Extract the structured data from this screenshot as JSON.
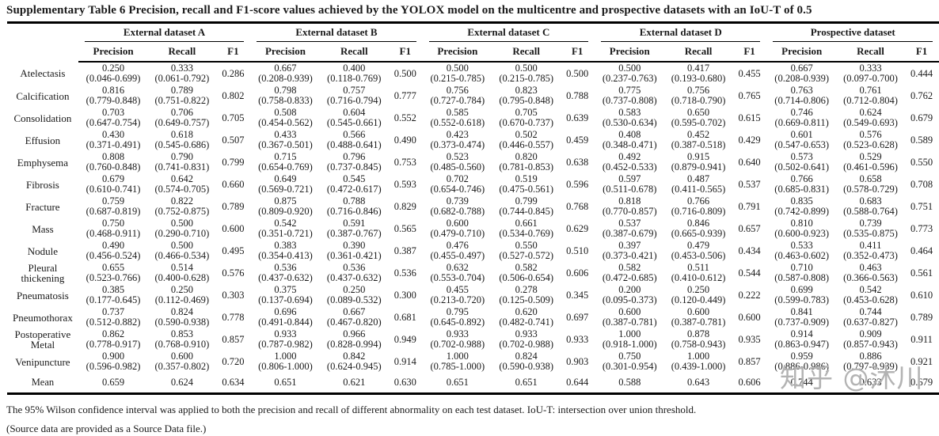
{
  "title": "Supplementary Table 6 Precision, recall and F1-score values achieved by the YOLOX model on the multicentre and prospective datasets with an IoU-T of 0.5",
  "header": {
    "groups": [
      "External dataset A",
      "External dataset B",
      "External dataset C",
      "External dataset D",
      "Prospective dataset"
    ],
    "metrics": [
      "Precision",
      "Recall",
      "F1"
    ]
  },
  "rows": [
    {
      "label": "Atelectasis",
      "cells": [
        [
          "0.250",
          "(0.046-0.699)"
        ],
        [
          "0.333",
          "(0.061-0.792)"
        ],
        [
          "0.286"
        ],
        [
          "0.667",
          "(0.208-0.939)"
        ],
        [
          "0.400",
          "(0.118-0.769)"
        ],
        [
          "0.500"
        ],
        [
          "0.500",
          "(0.215-0.785)"
        ],
        [
          "0.500",
          "(0.215-0.785)"
        ],
        [
          "0.500"
        ],
        [
          "0.500",
          "(0.237-0.763)"
        ],
        [
          "0.417",
          "(0.193-0.680)"
        ],
        [
          "0.455"
        ],
        [
          "0.667",
          "(0.208-0.939)"
        ],
        [
          "0.333",
          "(0.097-0.700)"
        ],
        [
          "0.444"
        ]
      ]
    },
    {
      "label": "Calcification",
      "cells": [
        [
          "0.816",
          "(0.779-0.848)"
        ],
        [
          "0.789",
          "(0.751-0.822)"
        ],
        [
          "0.802"
        ],
        [
          "0.798",
          "(0.758-0.833)"
        ],
        [
          "0.757",
          "(0.716-0.794)"
        ],
        [
          "0.777"
        ],
        [
          "0.756",
          "(0.727-0.784)"
        ],
        [
          "0.823",
          "(0.795-0.848)"
        ],
        [
          "0.788"
        ],
        [
          "0.775",
          "(0.737-0.808)"
        ],
        [
          "0.756",
          "(0.718-0.790)"
        ],
        [
          "0.765"
        ],
        [
          "0.763",
          "(0.714-0.806)"
        ],
        [
          "0.761",
          "(0.712-0.804)"
        ],
        [
          "0.762"
        ]
      ]
    },
    {
      "label": "Consolidation",
      "cells": [
        [
          "0.703",
          "(0.647-0.754)"
        ],
        [
          "0.706",
          "(0.649-0.757)"
        ],
        [
          "0.705"
        ],
        [
          "0.508",
          "(0.454-0.562)"
        ],
        [
          "0.604",
          "(0.545-0.661)"
        ],
        [
          "0.552"
        ],
        [
          "0.585",
          "(0.552-0.618)"
        ],
        [
          "0.705",
          "(0.670-0.737)"
        ],
        [
          "0.639"
        ],
        [
          "0.583",
          "(0.530-0.634)"
        ],
        [
          "0.650",
          "(0.595-0.702)"
        ],
        [
          "0.615"
        ],
        [
          "0.746",
          "(0.669-0.811)"
        ],
        [
          "0.624",
          "(0.549-0.693)"
        ],
        [
          "0.679"
        ]
      ]
    },
    {
      "label": "Effusion",
      "cells": [
        [
          "0.430",
          "(0.371-0.491)"
        ],
        [
          "0.618",
          "(0.545-0.686)"
        ],
        [
          "0.507"
        ],
        [
          "0.433",
          "(0.367-0.501)"
        ],
        [
          "0.566",
          "(0.488-0.641)"
        ],
        [
          "0.490"
        ],
        [
          "0.423",
          "(0.373-0.474)"
        ],
        [
          "0.502",
          "(0.446-0.557)"
        ],
        [
          "0.459"
        ],
        [
          "0.408",
          "(0.348-0.471)"
        ],
        [
          "0.452",
          "(0.387-0.518)"
        ],
        [
          "0.429"
        ],
        [
          "0.601",
          "(0.547-0.653)"
        ],
        [
          "0.576",
          "(0.523-0.628)"
        ],
        [
          "0.589"
        ]
      ]
    },
    {
      "label": "Emphysema",
      "cells": [
        [
          "0.808",
          "(0.760-0.848)"
        ],
        [
          "0.790",
          "(0.741-0.831)"
        ],
        [
          "0.799"
        ],
        [
          "0.715",
          "(0.654-0.769)"
        ],
        [
          "0.796",
          "(0.737-0.845)"
        ],
        [
          "0.753"
        ],
        [
          "0.523",
          "(0.485-0.560)"
        ],
        [
          "0.820",
          "(0.781-0.853)"
        ],
        [
          "0.638"
        ],
        [
          "0.492",
          "(0.452-0.533)"
        ],
        [
          "0.915",
          "(0.879-0.941)"
        ],
        [
          "0.640"
        ],
        [
          "0.573",
          "(0.502-0.641)"
        ],
        [
          "0.529",
          "(0.461-0.596)"
        ],
        [
          "0.550"
        ]
      ]
    },
    {
      "label": "Fibrosis",
      "cells": [
        [
          "0.679",
          "(0.610-0.741)"
        ],
        [
          "0.642",
          "(0.574-0.705)"
        ],
        [
          "0.660"
        ],
        [
          "0.649",
          "(0.569-0.721)"
        ],
        [
          "0.545",
          "(0.472-0.617)"
        ],
        [
          "0.593"
        ],
        [
          "0.702",
          "(0.654-0.746)"
        ],
        [
          "0.519",
          "(0.475-0.561)"
        ],
        [
          "0.596"
        ],
        [
          "0.597",
          "(0.511-0.678)"
        ],
        [
          "0.487",
          "(0.411-0.565)"
        ],
        [
          "0.537"
        ],
        [
          "0.766",
          "(0.685-0.831)"
        ],
        [
          "0.658",
          "(0.578-0.729)"
        ],
        [
          "0.708"
        ]
      ]
    },
    {
      "label": "Fracture",
      "cells": [
        [
          "0.759",
          "(0.687-0.819)"
        ],
        [
          "0.822",
          "(0.752-0.875)"
        ],
        [
          "0.789"
        ],
        [
          "0.875",
          "(0.809-0.920)"
        ],
        [
          "0.788",
          "(0.716-0.846)"
        ],
        [
          "0.829"
        ],
        [
          "0.739",
          "(0.682-0.788)"
        ],
        [
          "0.799",
          "(0.744-0.845)"
        ],
        [
          "0.768"
        ],
        [
          "0.818",
          "(0.770-0.857)"
        ],
        [
          "0.766",
          "(0.716-0.809)"
        ],
        [
          "0.791"
        ],
        [
          "0.835",
          "(0.742-0.899)"
        ],
        [
          "0.683",
          "(0.588-0.764)"
        ],
        [
          "0.751"
        ]
      ]
    },
    {
      "label": "Mass",
      "cells": [
        [
          "0.750",
          "(0.468-0.911)"
        ],
        [
          "0.500",
          "(0.290-0.710)"
        ],
        [
          "0.600"
        ],
        [
          "0.542",
          "(0.351-0.721)"
        ],
        [
          "0.591",
          "(0.387-0.767)"
        ],
        [
          "0.565"
        ],
        [
          "0.600",
          "(0.479-0.710)"
        ],
        [
          "0.661",
          "(0.534-0.769)"
        ],
        [
          "0.629"
        ],
        [
          "0.537",
          "(0.387-0.679)"
        ],
        [
          "0.846",
          "(0.665-0.939)"
        ],
        [
          "0.657"
        ],
        [
          "0.810",
          "(0.600-0.923)"
        ],
        [
          "0.739",
          "(0.535-0.875)"
        ],
        [
          "0.773"
        ]
      ]
    },
    {
      "label": "Nodule",
      "cells": [
        [
          "0.490",
          "(0.456-0.524)"
        ],
        [
          "0.500",
          "(0.466-0.534)"
        ],
        [
          "0.495"
        ],
        [
          "0.383",
          "(0.354-0.413)"
        ],
        [
          "0.390",
          "(0.361-0.421)"
        ],
        [
          "0.387"
        ],
        [
          "0.476",
          "(0.455-0.497)"
        ],
        [
          "0.550",
          "(0.527-0.572)"
        ],
        [
          "0.510"
        ],
        [
          "0.397",
          "(0.373-0.421)"
        ],
        [
          "0.479",
          "(0.453-0.506)"
        ],
        [
          "0.434"
        ],
        [
          "0.533",
          "(0.463-0.602)"
        ],
        [
          "0.411",
          "(0.352-0.473)"
        ],
        [
          "0.464"
        ]
      ]
    },
    {
      "label": "Pleural thickening",
      "cells": [
        [
          "0.655",
          "(0.523-0.766)"
        ],
        [
          "0.514",
          "(0.400-0.628)"
        ],
        [
          "0.576"
        ],
        [
          "0.536",
          "(0.437-0.632)"
        ],
        [
          "0.536",
          "(0.437-0.632)"
        ],
        [
          "0.536"
        ],
        [
          "0.632",
          "(0.553-0.704)"
        ],
        [
          "0.582",
          "(0.506-0.654)"
        ],
        [
          "0.606"
        ],
        [
          "0.582",
          "(0.472-0.685)"
        ],
        [
          "0.511",
          "(0.410-0.612)"
        ],
        [
          "0.544"
        ],
        [
          "0.710",
          "(0.587-0.808)"
        ],
        [
          "0.463",
          "(0.366-0.563)"
        ],
        [
          "0.561"
        ]
      ]
    },
    {
      "label": "Pneumatosis",
      "cells": [
        [
          "0.385",
          "(0.177-0.645)"
        ],
        [
          "0.250",
          "(0.112-0.469)"
        ],
        [
          "0.303"
        ],
        [
          "0.375",
          "(0.137-0.694)"
        ],
        [
          "0.250",
          "(0.089-0.532)"
        ],
        [
          "0.300"
        ],
        [
          "0.455",
          "(0.213-0.720)"
        ],
        [
          "0.278",
          "(0.125-0.509)"
        ],
        [
          "0.345"
        ],
        [
          "0.200",
          "(0.095-0.373)"
        ],
        [
          "0.250",
          "(0.120-0.449)"
        ],
        [
          "0.222"
        ],
        [
          "0.699",
          "(0.599-0.783)"
        ],
        [
          "0.542",
          "(0.453-0.628)"
        ],
        [
          "0.610"
        ]
      ]
    },
    {
      "label": "Pneumothorax",
      "cells": [
        [
          "0.737",
          "(0.512-0.882)"
        ],
        [
          "0.824",
          "(0.590-0.938)"
        ],
        [
          "0.778"
        ],
        [
          "0.696",
          "(0.491-0.844)"
        ],
        [
          "0.667",
          "(0.467-0.820)"
        ],
        [
          "0.681"
        ],
        [
          "0.795",
          "(0.645-0.892)"
        ],
        [
          "0.620",
          "(0.482-0.741)"
        ],
        [
          "0.697"
        ],
        [
          "0.600",
          "(0.387-0.781)"
        ],
        [
          "0.600",
          "(0.387-0.781)"
        ],
        [
          "0.600"
        ],
        [
          "0.841",
          "(0.737-0.909)"
        ],
        [
          "0.744",
          "(0.637-0.827)"
        ],
        [
          "0.789"
        ]
      ]
    },
    {
      "label": "Postoperative Metal",
      "cells": [
        [
          "0.862",
          "(0.778-0.917)"
        ],
        [
          "0.853",
          "(0.768-0.910)"
        ],
        [
          "0.857"
        ],
        [
          "0.933",
          "(0.787-0.982)"
        ],
        [
          "0.966",
          "(0.828-0.994)"
        ],
        [
          "0.949"
        ],
        [
          "0.933",
          "(0.702-0.988)"
        ],
        [
          "0.933",
          "(0.702-0.988)"
        ],
        [
          "0.933"
        ],
        [
          "1.000",
          "(0.918-1.000)"
        ],
        [
          "0.878",
          "(0.758-0.943)"
        ],
        [
          "0.935"
        ],
        [
          "0.914",
          "(0.863-0.947)"
        ],
        [
          "0.909",
          "(0.857-0.943)"
        ],
        [
          "0.911"
        ]
      ]
    },
    {
      "label": "Venipuncture",
      "cells": [
        [
          "0.900",
          "(0.596-0.982)"
        ],
        [
          "0.600",
          "(0.357-0.802)"
        ],
        [
          "0.720"
        ],
        [
          "1.000",
          "(0.806-1.000)"
        ],
        [
          "0.842",
          "(0.624-0.945)"
        ],
        [
          "0.914"
        ],
        [
          "1.000",
          "(0.785-1.000)"
        ],
        [
          "0.824",
          "(0.590-0.938)"
        ],
        [
          "0.903"
        ],
        [
          "0.750",
          "(0.301-0.954)"
        ],
        [
          "1.000",
          "(0.439-1.000)"
        ],
        [
          "0.857"
        ],
        [
          "0.959",
          "(0.886-0.986)"
        ],
        [
          "0.886",
          "(0.797-0.939)"
        ],
        [
          "0.921"
        ]
      ]
    }
  ],
  "mean": {
    "label": "Mean",
    "values": [
      "0.659",
      "0.624",
      "0.634",
      "0.651",
      "0.621",
      "0.630",
      "0.651",
      "0.651",
      "0.644",
      "0.588",
      "0.643",
      "0.606",
      "0.744",
      "0.633",
      "0.679"
    ]
  },
  "footnotes": [
    "The 95% Wilson confidence interval was applied to both the precision and recall of different abnormality on each test dataset. IoU-T: intersection over union threshold.",
    "(Source data are provided as a Source Data file.)"
  ],
  "watermark": "知乎 @沐川"
}
